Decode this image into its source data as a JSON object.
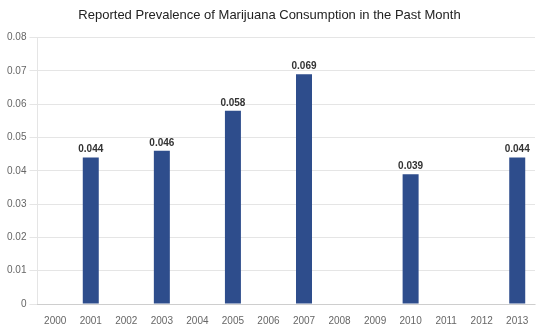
{
  "chart_data": {
    "type": "bar",
    "title": "Reported Prevalence of Marijuana Consumption in the Past Month",
    "categories": [
      "2000",
      "2001",
      "2002",
      "2003",
      "2004",
      "2005",
      "2006",
      "2007",
      "2008",
      "2009",
      "2010",
      "2011",
      "2012",
      "2013"
    ],
    "values": [
      null,
      0.044,
      null,
      0.046,
      null,
      0.058,
      null,
      0.069,
      null,
      null,
      0.039,
      null,
      null,
      0.044
    ],
    "color": "#2E4D8C",
    "ylim": [
      0,
      0.08
    ],
    "yticks": [
      0,
      0.01,
      0.02,
      0.03,
      0.04,
      0.05,
      0.06,
      0.07,
      0.08
    ],
    "grid": true,
    "data_labels": true
  }
}
